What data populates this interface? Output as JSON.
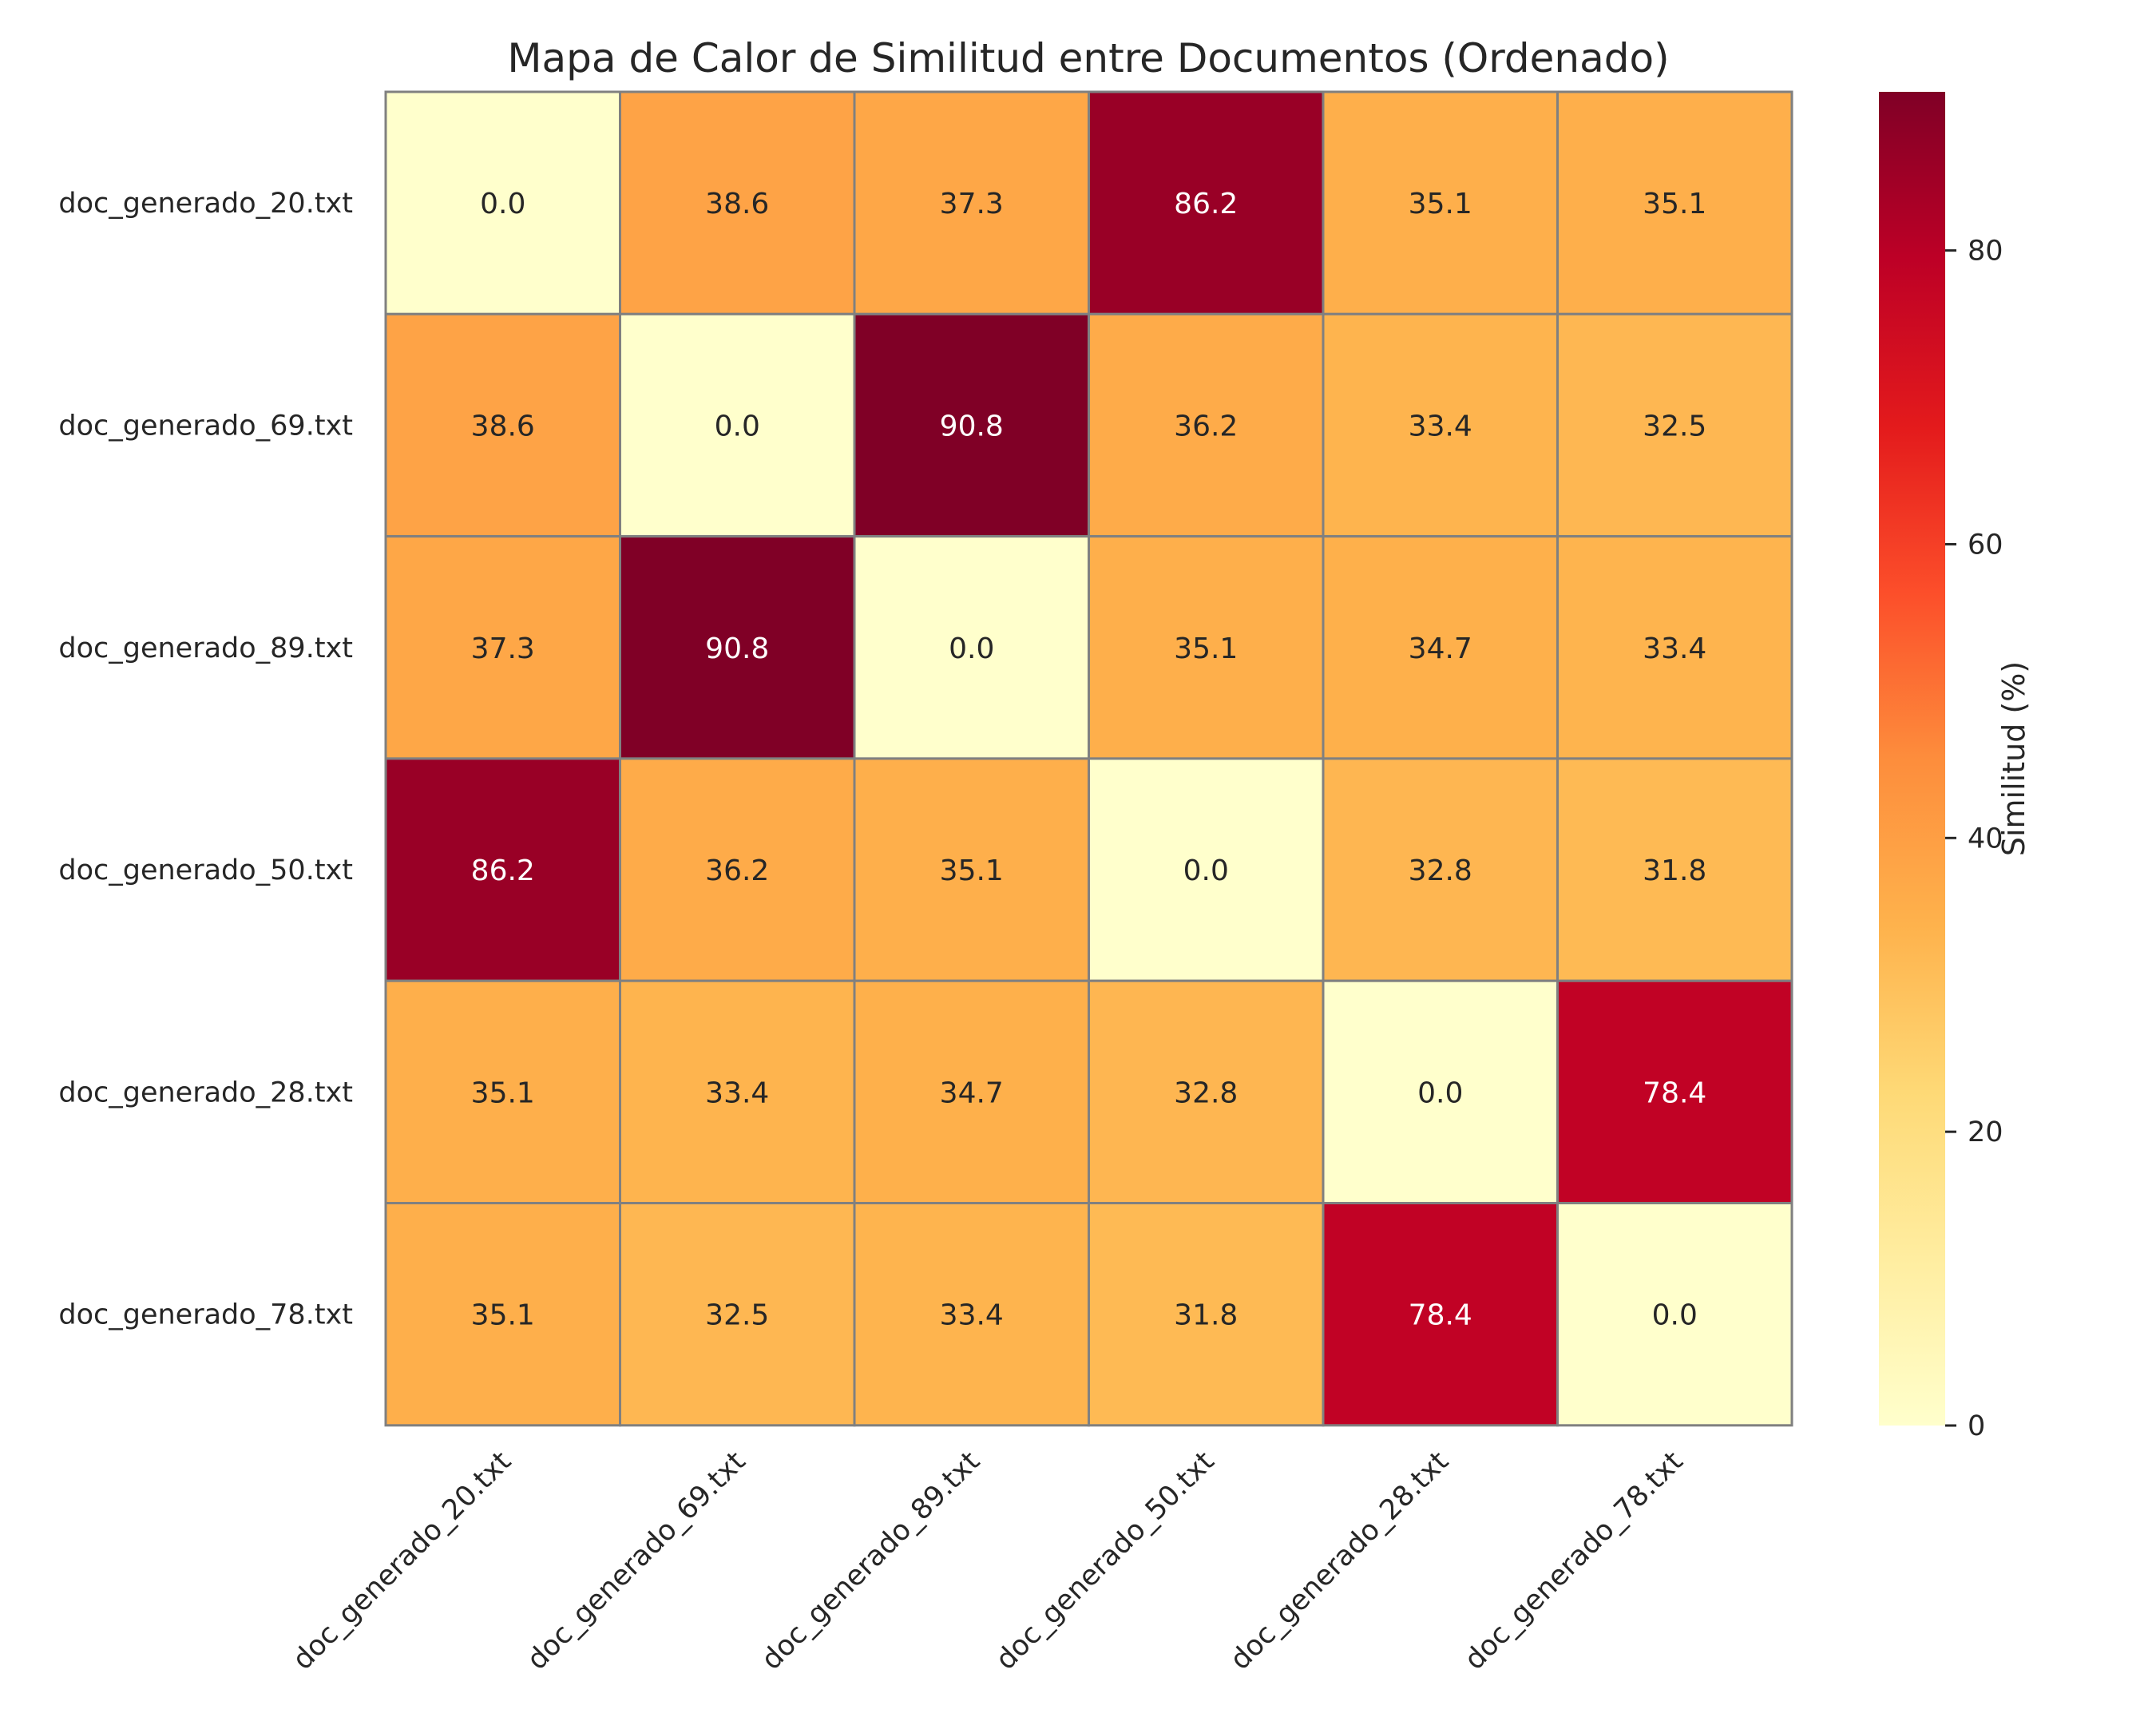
{
  "chart_data": {
    "type": "heatmap",
    "title": "Mapa de Calor de Similitud entre Documentos (Ordenado)",
    "row_labels": [
      "doc_generado_20.txt",
      "doc_generado_69.txt",
      "doc_generado_89.txt",
      "doc_generado_50.txt",
      "doc_generado_28.txt",
      "doc_generado_78.txt"
    ],
    "col_labels": [
      "doc_generado_20.txt",
      "doc_generado_69.txt",
      "doc_generado_89.txt",
      "doc_generado_50.txt",
      "doc_generado_28.txt",
      "doc_generado_78.txt"
    ],
    "values": [
      [
        0.0,
        38.6,
        37.3,
        86.2,
        35.1,
        35.1
      ],
      [
        38.6,
        0.0,
        90.8,
        36.2,
        33.4,
        32.5
      ],
      [
        37.3,
        90.8,
        0.0,
        35.1,
        34.7,
        33.4
      ],
      [
        86.2,
        36.2,
        35.1,
        0.0,
        32.8,
        31.8
      ],
      [
        35.1,
        33.4,
        34.7,
        32.8,
        0.0,
        78.4
      ],
      [
        35.1,
        32.5,
        33.4,
        31.8,
        78.4,
        0.0
      ]
    ],
    "value_format": "0.0",
    "colormap": "YlOrRd",
    "vmin": 0,
    "vmax": 90.8,
    "colorbar": {
      "label": "Similitud (%)",
      "ticks": [
        0,
        20,
        40,
        60,
        80
      ]
    },
    "cell_border_color": "#808080",
    "text_colors": {
      "dark": "#262626",
      "light": "#ffffff"
    }
  }
}
